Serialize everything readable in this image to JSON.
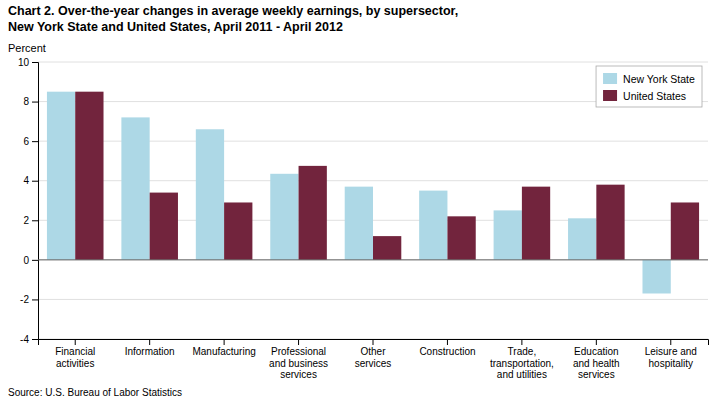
{
  "chart_data": {
    "type": "bar",
    "title": "Chart 2. Over-the-year changes in average weekly earnings, by supersector,",
    "subtitle": "New York State and United States, April 2011 - April 2012",
    "ylabel": "Percent",
    "annotations": [
      "Source: U.S. Bureau of Labor Statistics"
    ],
    "categories": [
      "Financial\nactivities",
      "Information",
      "Manufacturing",
      "Professional\nand business\nservices",
      "Other\nservices",
      "Construction",
      "Trade,\ntransportation,\nand utilities",
      "Education\nand health\nservices",
      "Leisure and\nhospitality"
    ],
    "series": [
      {
        "name": "New York State",
        "color": "#ADD8E6",
        "values": [
          8.5,
          7.2,
          6.6,
          4.35,
          3.7,
          3.5,
          2.5,
          2.1,
          -1.7
        ]
      },
      {
        "name": "United States",
        "color": "#72243D",
        "values": [
          8.5,
          3.4,
          2.9,
          4.75,
          1.2,
          2.2,
          3.7,
          3.8,
          2.9
        ]
      }
    ],
    "ylim": [
      -4,
      10
    ],
    "yticks": [
      -4,
      -2,
      0,
      2,
      4,
      6,
      8,
      10
    ],
    "grid": true,
    "legend": "upper right"
  }
}
